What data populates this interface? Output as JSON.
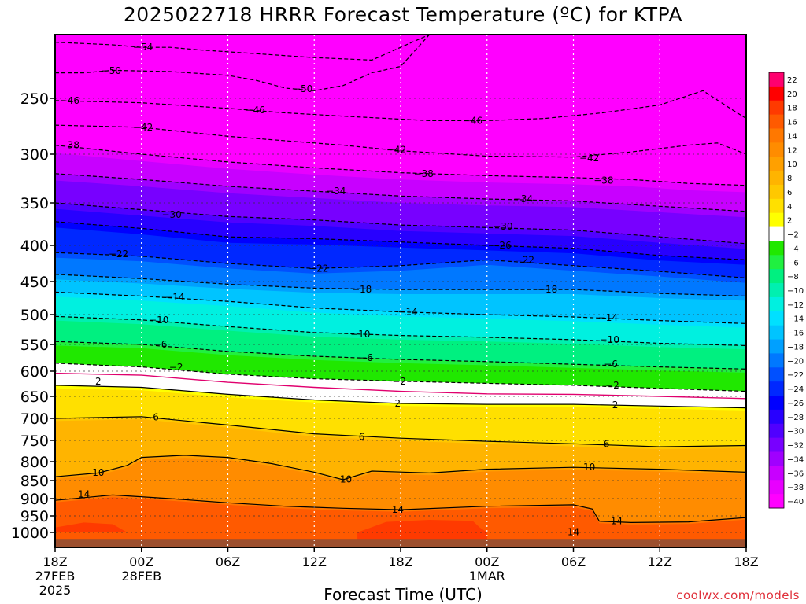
{
  "title": "2025022718 HRRR Forecast Temperature (ºC) for KTPA",
  "xlabel": "Forecast Time (UTC)",
  "credit": "coolwx.com/models",
  "chart_data": {
    "type": "time-height contour",
    "title": "2025022718 HRRR Forecast Temperature (ºC) for KTPA",
    "xlabel": "Forecast Time (UTC)",
    "ylabel": "",
    "y_axis_pressure_hPa": [
      250,
      300,
      350,
      400,
      450,
      500,
      550,
      600,
      650,
      700,
      750,
      800,
      850,
      900,
      950,
      1000
    ],
    "y_range_hPa": [
      1030,
      200
    ],
    "x_range_hours": [
      0,
      48
    ],
    "x_ticks": [
      {
        "h": 0,
        "label": "18Z",
        "date": "27FEB",
        "year": "2025"
      },
      {
        "h": 6,
        "label": "00Z",
        "date": "28FEB",
        "year": ""
      },
      {
        "h": 12,
        "label": "06Z",
        "date": "",
        "year": ""
      },
      {
        "h": 18,
        "label": "12Z",
        "date": "",
        "year": ""
      },
      {
        "h": 24,
        "label": "18Z",
        "date": "",
        "year": ""
      },
      {
        "h": 30,
        "label": "00Z",
        "date": "1MAR",
        "year": ""
      },
      {
        "h": 36,
        "label": "06Z",
        "date": "",
        "year": ""
      },
      {
        "h": 42,
        "label": "12Z",
        "date": "",
        "year": ""
      },
      {
        "h": 48,
        "label": "18Z",
        "date": "",
        "year": ""
      }
    ],
    "grid": true,
    "colorbar_labels": [
      22,
      20,
      18,
      16,
      14,
      12,
      10,
      8,
      6,
      4,
      2,
      -2,
      -4,
      -6,
      -8,
      -10,
      -12,
      -14,
      -16,
      -18,
      -20,
      -22,
      -24,
      -26,
      -28,
      -30,
      -32,
      -34,
      -36,
      -38,
      -40
    ],
    "colorbar_colors": [
      "#ff006e",
      "#ff0000",
      "#ff3a00",
      "#ff5a00",
      "#ff7800",
      "#ff8c00",
      "#ffa000",
      "#ffb400",
      "#ffc800",
      "#ffe000",
      "#ffff00",
      "#ffffff",
      "#20e800",
      "#20f040",
      "#00f080",
      "#00f0b0",
      "#00f0e0",
      "#00e0ff",
      "#00c4ff",
      "#00a0ff",
      "#0078ff",
      "#0050ff",
      "#0028ff",
      "#0000ff",
      "#2800ff",
      "#5000ff",
      "#7800ff",
      "#a000ff",
      "#c800ff",
      "#e800ff",
      "#ff00ff"
    ],
    "contours": [
      {
        "value": -54,
        "dashed": true,
        "label_pos": [
          [
            6.1,
            210
          ]
        ],
        "points": [
          [
            0,
            206
          ],
          [
            2,
            207
          ],
          [
            4,
            208
          ],
          [
            6,
            210
          ],
          [
            8,
            210
          ],
          [
            10,
            212
          ],
          [
            14,
            215
          ],
          [
            18,
            218
          ],
          [
            22,
            220
          ],
          [
            26,
            200
          ]
        ]
      },
      {
        "value": -50,
        "dashed": true,
        "label_pos": [
          [
            3.9,
            228.5
          ],
          [
            17.2,
            242.7
          ]
        ],
        "points": [
          [
            0,
            230
          ],
          [
            2,
            230
          ],
          [
            4,
            228
          ],
          [
            8,
            229
          ],
          [
            12,
            232
          ],
          [
            14,
            236
          ],
          [
            16,
            242
          ],
          [
            18,
            244
          ],
          [
            20,
            240
          ],
          [
            22,
            230
          ],
          [
            24,
            225
          ],
          [
            26,
            200
          ]
        ]
      },
      {
        "value": -46,
        "dashed": true,
        "label_pos": [
          [
            1,
            252
          ],
          [
            13.9,
            260.5
          ],
          [
            29,
            270
          ]
        ],
        "points": [
          [
            0,
            252
          ],
          [
            6,
            254
          ],
          [
            12,
            259
          ],
          [
            16,
            263
          ],
          [
            20,
            266
          ],
          [
            26,
            270
          ],
          [
            30,
            270
          ],
          [
            34,
            268
          ],
          [
            38,
            263
          ],
          [
            42,
            256
          ],
          [
            45,
            244
          ],
          [
            47,
            260
          ],
          [
            48,
            268
          ]
        ]
      },
      {
        "value": -42,
        "dashed": true,
        "label_pos": [
          [
            6.1,
            276
          ],
          [
            23.7,
            296
          ],
          [
            37.1,
            304
          ]
        ],
        "points": [
          [
            0,
            274
          ],
          [
            6,
            276
          ],
          [
            12,
            284
          ],
          [
            16,
            288
          ],
          [
            20,
            292
          ],
          [
            24,
            297
          ],
          [
            30,
            302
          ],
          [
            36,
            303
          ],
          [
            40,
            298
          ],
          [
            44,
            292
          ],
          [
            46,
            290
          ],
          [
            48,
            300
          ]
        ]
      },
      {
        "value": -38,
        "dashed": true,
        "label_pos": [
          [
            1,
            292
          ],
          [
            25.6,
            320
          ],
          [
            38.1,
            327
          ]
        ],
        "points": [
          [
            0,
            292
          ],
          [
            6,
            300
          ],
          [
            12,
            308
          ],
          [
            18,
            314
          ],
          [
            24,
            319
          ],
          [
            30,
            322
          ],
          [
            36,
            324
          ],
          [
            40,
            326
          ],
          [
            44,
            330
          ],
          [
            48,
            332
          ]
        ]
      },
      {
        "value": -34,
        "dashed": true,
        "label_pos": [
          [
            19.5,
            338
          ],
          [
            32.5,
            346
          ]
        ],
        "points": [
          [
            0,
            320
          ],
          [
            6,
            326
          ],
          [
            12,
            333
          ],
          [
            18,
            338
          ],
          [
            24,
            343
          ],
          [
            30,
            346
          ],
          [
            36,
            348
          ],
          [
            42,
            354
          ],
          [
            48,
            360
          ]
        ]
      },
      {
        "value": -30,
        "dashed": true,
        "label_pos": [
          [
            8.1,
            364
          ],
          [
            31.1,
            378
          ]
        ],
        "points": [
          [
            0,
            350
          ],
          [
            6,
            358
          ],
          [
            12,
            366
          ],
          [
            18,
            370
          ],
          [
            24,
            376
          ],
          [
            30,
            379
          ],
          [
            36,
            382
          ],
          [
            42,
            390
          ],
          [
            48,
            398
          ]
        ]
      },
      {
        "value": -26,
        "dashed": true,
        "label_pos": [
          [
            31,
            400
          ]
        ],
        "points": [
          [
            0,
            372
          ],
          [
            6,
            380
          ],
          [
            12,
            390
          ],
          [
            18,
            392
          ],
          [
            24,
            396
          ],
          [
            30,
            400
          ],
          [
            36,
            404
          ],
          [
            42,
            414
          ],
          [
            48,
            420
          ]
        ]
      },
      {
        "value": -22,
        "dashed": true,
        "label_pos": [
          [
            4.4,
            412
          ],
          [
            18.3,
            432
          ],
          [
            32.6,
            420
          ]
        ],
        "points": [
          [
            0,
            410
          ],
          [
            6,
            415
          ],
          [
            12,
            425
          ],
          [
            18,
            432
          ],
          [
            24,
            428
          ],
          [
            30,
            420
          ],
          [
            36,
            428
          ],
          [
            42,
            436
          ],
          [
            48,
            445
          ]
        ]
      },
      {
        "value": -18,
        "dashed": true,
        "label_pos": [
          [
            21.3,
            462
          ],
          [
            34.2,
            462
          ]
        ],
        "points": [
          [
            0,
            440
          ],
          [
            6,
            446
          ],
          [
            12,
            454
          ],
          [
            18,
            460
          ],
          [
            24,
            462
          ],
          [
            30,
            462
          ],
          [
            36,
            462
          ],
          [
            42,
            468
          ],
          [
            48,
            472
          ]
        ]
      },
      {
        "value": -14,
        "dashed": true,
        "label_pos": [
          [
            8.3,
            474
          ],
          [
            24.5,
            496
          ],
          [
            38.4,
            505
          ]
        ],
        "points": [
          [
            0,
            466
          ],
          [
            6,
            472
          ],
          [
            12,
            480
          ],
          [
            18,
            490
          ],
          [
            24,
            496
          ],
          [
            30,
            500
          ],
          [
            36,
            504
          ],
          [
            42,
            510
          ],
          [
            48,
            515
          ]
        ]
      },
      {
        "value": -10,
        "dashed": true,
        "label_pos": [
          [
            7.2,
            509
          ],
          [
            21.2,
            533
          ],
          [
            38.5,
            542
          ]
        ],
        "points": [
          [
            0,
            503
          ],
          [
            6,
            509
          ],
          [
            12,
            520
          ],
          [
            18,
            530
          ],
          [
            24,
            535
          ],
          [
            30,
            538
          ],
          [
            36,
            542
          ],
          [
            42,
            548
          ],
          [
            48,
            552
          ]
        ]
      },
      {
        "value": -6,
        "dashed": true,
        "label_pos": [
          [
            7.3,
            550
          ],
          [
            21.6,
            575
          ],
          [
            38.6,
            587
          ]
        ],
        "points": [
          [
            0,
            545
          ],
          [
            6,
            550
          ],
          [
            12,
            563
          ],
          [
            18,
            572
          ],
          [
            24,
            578
          ],
          [
            30,
            582
          ],
          [
            36,
            587
          ],
          [
            42,
            592
          ],
          [
            48,
            596
          ]
        ]
      },
      {
        "value": -2,
        "dashed": true,
        "label_pos": [
          [
            8.4,
            593
          ],
          [
            23.9,
            620
          ],
          [
            38.7,
            628
          ]
        ],
        "points": [
          [
            0,
            585
          ],
          [
            6,
            592
          ],
          [
            12,
            606
          ],
          [
            18,
            615
          ],
          [
            24,
            620
          ],
          [
            30,
            624
          ],
          [
            36,
            628
          ],
          [
            42,
            634
          ],
          [
            48,
            640
          ]
        ]
      },
      {
        "value": 2,
        "dashed": false,
        "label_pos": [
          [
            3,
            620
          ],
          [
            23.8,
            666
          ],
          [
            38.9,
            670
          ]
        ],
        "points": [
          [
            0,
            628
          ],
          [
            6,
            632
          ],
          [
            12,
            646
          ],
          [
            18,
            658
          ],
          [
            24,
            666
          ],
          [
            30,
            668
          ],
          [
            36,
            668
          ],
          [
            42,
            672
          ],
          [
            48,
            676
          ]
        ]
      },
      {
        "value": 6,
        "dashed": false,
        "label_pos": [
          [
            7,
            697
          ],
          [
            21.3,
            742
          ],
          [
            38.3,
            758
          ]
        ],
        "points": [
          [
            0,
            700
          ],
          [
            6,
            696
          ],
          [
            12,
            715
          ],
          [
            18,
            735
          ],
          [
            24,
            745
          ],
          [
            30,
            752
          ],
          [
            36,
            758
          ],
          [
            42,
            765
          ],
          [
            48,
            762
          ]
        ]
      },
      {
        "value": 10,
        "dashed": false,
        "label_pos": [
          [
            3,
            829
          ],
          [
            20.2,
            847
          ],
          [
            37.1,
            815
          ]
        ],
        "points": [
          [
            0,
            840
          ],
          [
            3,
            830
          ],
          [
            5,
            810
          ],
          [
            6,
            790
          ],
          [
            9,
            785
          ],
          [
            12,
            790
          ],
          [
            15,
            805
          ],
          [
            18,
            828
          ],
          [
            20,
            848
          ],
          [
            22,
            825
          ],
          [
            26,
            830
          ],
          [
            30,
            820
          ],
          [
            36,
            815
          ],
          [
            42,
            820
          ],
          [
            48,
            828
          ]
        ]
      },
      {
        "value": 14,
        "dashed": false,
        "label_pos": [
          [
            2,
            888
          ],
          [
            23.8,
            932
          ],
          [
            39,
            966
          ],
          [
            36,
            999
          ]
        ],
        "points": [
          [
            0,
            905
          ],
          [
            4,
            890
          ],
          [
            8,
            900
          ],
          [
            12,
            912
          ],
          [
            16,
            922
          ],
          [
            20,
            928
          ],
          [
            24,
            932
          ],
          [
            30,
            922
          ],
          [
            36,
            918
          ],
          [
            37.3,
            930
          ],
          [
            37.8,
            966
          ],
          [
            40,
            970
          ],
          [
            44,
            968
          ],
          [
            48,
            955
          ]
        ]
      }
    ],
    "isotherm_0C_hPa": [
      [
        0,
        604
      ],
      [
        6,
        608
      ],
      [
        12,
        622
      ],
      [
        18,
        632
      ],
      [
        24,
        640
      ],
      [
        30,
        645
      ],
      [
        36,
        646
      ],
      [
        42,
        650
      ],
      [
        48,
        655
      ]
    ],
    "surface_hPa": 1013
  }
}
